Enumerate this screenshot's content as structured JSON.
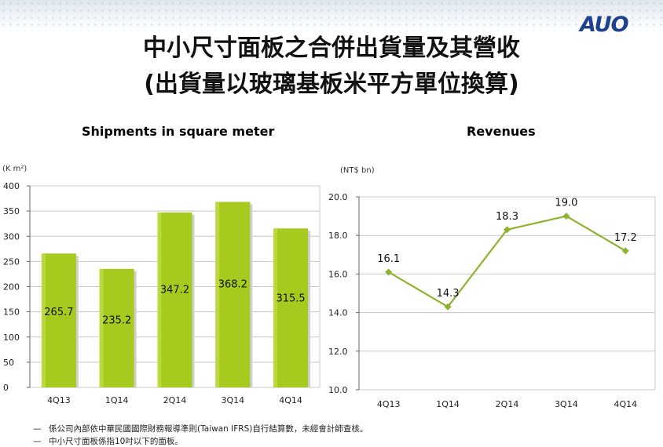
{
  "header": {
    "logo_text": "AUO",
    "title_line1": "中小尺寸面板之合併出貨量及其營收",
    "title_line2": "(出貨量以玻璃基板米平方單位換算)"
  },
  "colors": {
    "bar_fill": "#a6ca1e",
    "line_color": "#8db42c",
    "grid": "#c8c8c8",
    "logo": "#1f3f8f"
  },
  "chart_data": [
    {
      "type": "bar",
      "title": "Shipments in square meter",
      "unit_label": "(K m²)",
      "categories": [
        "4Q13",
        "1Q14",
        "2Q14",
        "3Q14",
        "4Q14"
      ],
      "values": [
        265.7,
        235.2,
        347.2,
        368.2,
        315.5
      ],
      "value_labels": [
        "265.7",
        "235.2",
        "347.2",
        "368.2",
        "315.5"
      ],
      "ylim": [
        0,
        400
      ],
      "yticks": [
        0,
        50,
        100,
        150,
        200,
        250,
        300,
        350,
        400
      ],
      "ytick_labels": [
        "0",
        "50",
        "100",
        "150",
        "200",
        "250",
        "300",
        "350",
        "400"
      ],
      "grid": true
    },
    {
      "type": "line",
      "title": "Revenues",
      "unit_label": "(NT$ bn)",
      "categories": [
        "4Q13",
        "1Q14",
        "2Q14",
        "3Q14",
        "4Q14"
      ],
      "values": [
        16.1,
        14.3,
        18.3,
        19.0,
        17.2
      ],
      "value_labels": [
        "16.1",
        "14.3",
        "18.3",
        "19.0",
        "17.2"
      ],
      "ylim": [
        10,
        20
      ],
      "yticks": [
        10,
        12,
        14,
        16,
        18,
        20
      ],
      "ytick_labels": [
        "10.0",
        "12.0",
        "14.0",
        "16.0",
        "18.0",
        "20.0"
      ],
      "grid": true
    }
  ],
  "notes": [
    "係公司內部依中華民國國際財務報導準則(Taiwan IFRS)自行結算數，未經會計師查核。",
    "中小尺寸面板係指10吋以下的面板。"
  ],
  "note_bullet": "—"
}
